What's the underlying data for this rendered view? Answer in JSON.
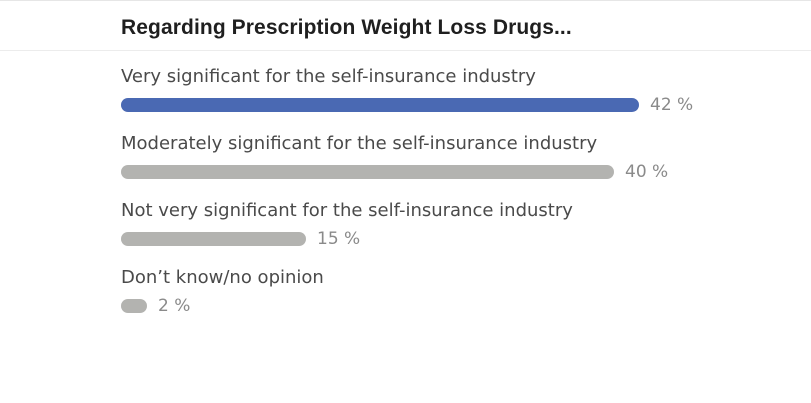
{
  "header": {
    "title": "Regarding Prescription Weight Loss Drugs..."
  },
  "colors": {
    "highlight": "#4a69b3",
    "bar": "#b3b3b0"
  },
  "chart_data": {
    "type": "bar",
    "orientation": "horizontal",
    "title": "Regarding Prescription Weight Loss Drugs...",
    "categories": [
      "Very significant for the self-insurance industry",
      "Moderately significant for the self-insurance industry",
      "Not very significant for the self-insurance industry",
      "Don’t know/no opinion"
    ],
    "values": [
      42,
      40,
      15,
      2
    ],
    "value_labels": [
      "42 %",
      "40 %",
      "15 %",
      "2 %"
    ],
    "highlighted_index": 0,
    "xlim": [
      0,
      42
    ],
    "grid": false,
    "legend": "none"
  }
}
